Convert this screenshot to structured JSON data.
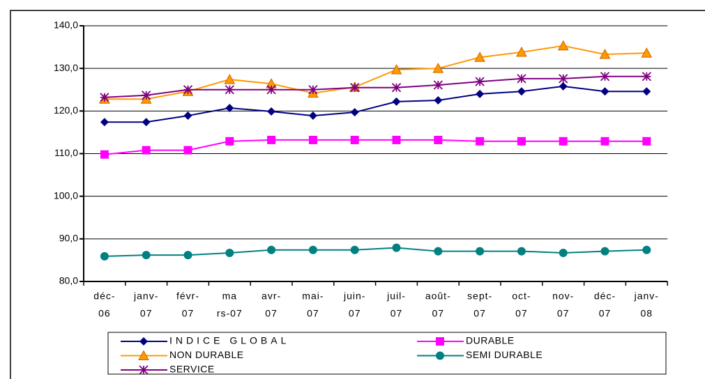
{
  "chart_data": {
    "type": "line",
    "categories": [
      [
        "déc-",
        "06"
      ],
      [
        "janv-",
        "07"
      ],
      [
        "févr-",
        "07"
      ],
      [
        "ma",
        "rs-07"
      ],
      [
        "avr-",
        "07"
      ],
      [
        "mai-",
        "07"
      ],
      [
        "juin-",
        "07"
      ],
      [
        "juil-",
        "07"
      ],
      [
        "août-",
        "07"
      ],
      [
        "sept-",
        "07"
      ],
      [
        "oct-",
        "07"
      ],
      [
        "nov-",
        "07"
      ],
      [
        "déc-",
        "07"
      ],
      [
        "janv-",
        "08"
      ]
    ],
    "ylim": [
      80,
      140
    ],
    "yticks": [
      {
        "value": 80,
        "label": "80,0"
      },
      {
        "value": 90,
        "label": "90,0"
      },
      {
        "value": 100,
        "label": "100,0"
      },
      {
        "value": 110,
        "label": "110,0"
      },
      {
        "value": 120,
        "label": "120,0"
      },
      {
        "value": 130,
        "label": "130,0"
      },
      {
        "value": 140,
        "label": "140,0"
      }
    ],
    "grid": true,
    "series": [
      {
        "name": "INDICE GLOBAL",
        "color": "#000080",
        "marker": "diamond",
        "values": [
          117.4,
          117.4,
          118.9,
          120.7,
          119.9,
          118.9,
          119.7,
          122.2,
          122.5,
          124.0,
          124.6,
          125.8,
          124.6,
          124.6
        ]
      },
      {
        "name": "DURABLE",
        "color": "#ff00ff",
        "marker": "square",
        "values": [
          109.8,
          110.8,
          110.8,
          112.9,
          113.2,
          113.2,
          113.2,
          113.2,
          113.2,
          112.9,
          112.9,
          112.9,
          112.9,
          112.9
        ]
      },
      {
        "name": "NON DURABLE",
        "color": "#ff9900",
        "marker": "triangle",
        "values": [
          122.8,
          122.8,
          124.6,
          127.4,
          126.4,
          124.2,
          125.6,
          129.7,
          130.0,
          132.6,
          133.8,
          135.3,
          133.3,
          133.6
        ]
      },
      {
        "name": "SEMI DURABLE",
        "color": "#008080",
        "marker": "circle",
        "values": [
          85.9,
          86.2,
          86.2,
          86.7,
          87.4,
          87.4,
          87.4,
          87.9,
          87.1,
          87.1,
          87.1,
          86.7,
          87.1,
          87.4
        ]
      },
      {
        "name": "SERVICE",
        "color": "#800080",
        "marker": "star",
        "values": [
          123.2,
          123.7,
          125.0,
          125.0,
          125.0,
          125.0,
          125.5,
          125.5,
          126.1,
          126.9,
          127.6,
          127.6,
          128.1,
          128.1
        ]
      }
    ]
  }
}
